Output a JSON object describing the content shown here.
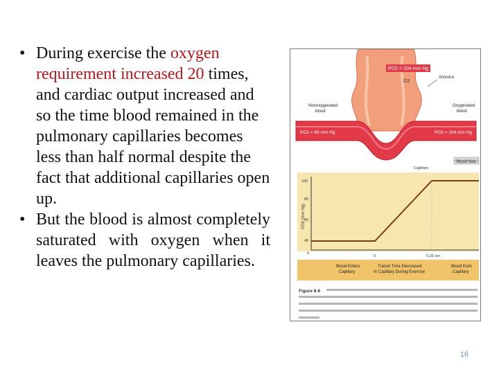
{
  "bullets": [
    {
      "before": "During exercise the ",
      "highlight": "oxygen requirement increased 20",
      "after": " times,  and cardiac output increased and so the time blood  remained in the pulmonary capillaries becomes less than half normal despite the fact that additional capillaries open up."
    },
    {
      "text": "But  the  blood  is  almost completely  saturated  with oxygen  when  it  leaves  the pulmonary capillaries."
    }
  ],
  "figure": {
    "alveolus_pressure": "PO2 = 104 mm Hg",
    "o2_symbol": "O2",
    "alveolus_label": "Alveolus",
    "nonoxy_label": [
      "Nonoxygenated",
      "blood"
    ],
    "oxy_label": [
      "Oxygenated",
      "blood"
    ],
    "left_pressure": "PO2 = 40 mm Hg",
    "right_pressure": "PO2 = 104 mm Hg",
    "blood_flow": "Blood flow",
    "capillary_label": "Capillary",
    "y_axis_label": "PO2 (mm Hg)",
    "y_ticks": [
      "100",
      "80",
      "60",
      "40",
      "0"
    ],
    "x_ticks": [
      "0",
      "0.25 sec"
    ],
    "bottom_labels": [
      [
        "Blood Enters",
        "Capillary"
      ],
      [
        "Transit Time Decreased",
        "In Capillary During Exercise"
      ],
      [
        "Blood Exits",
        "Capillary"
      ]
    ],
    "caption_head": "Figure 8-6",
    "colors": {
      "alveolus": "#f2a07c",
      "blood": "#e23a48",
      "chart_bg": "#f7e7ae",
      "line": "#7a3a10"
    }
  },
  "page_number": "16"
}
